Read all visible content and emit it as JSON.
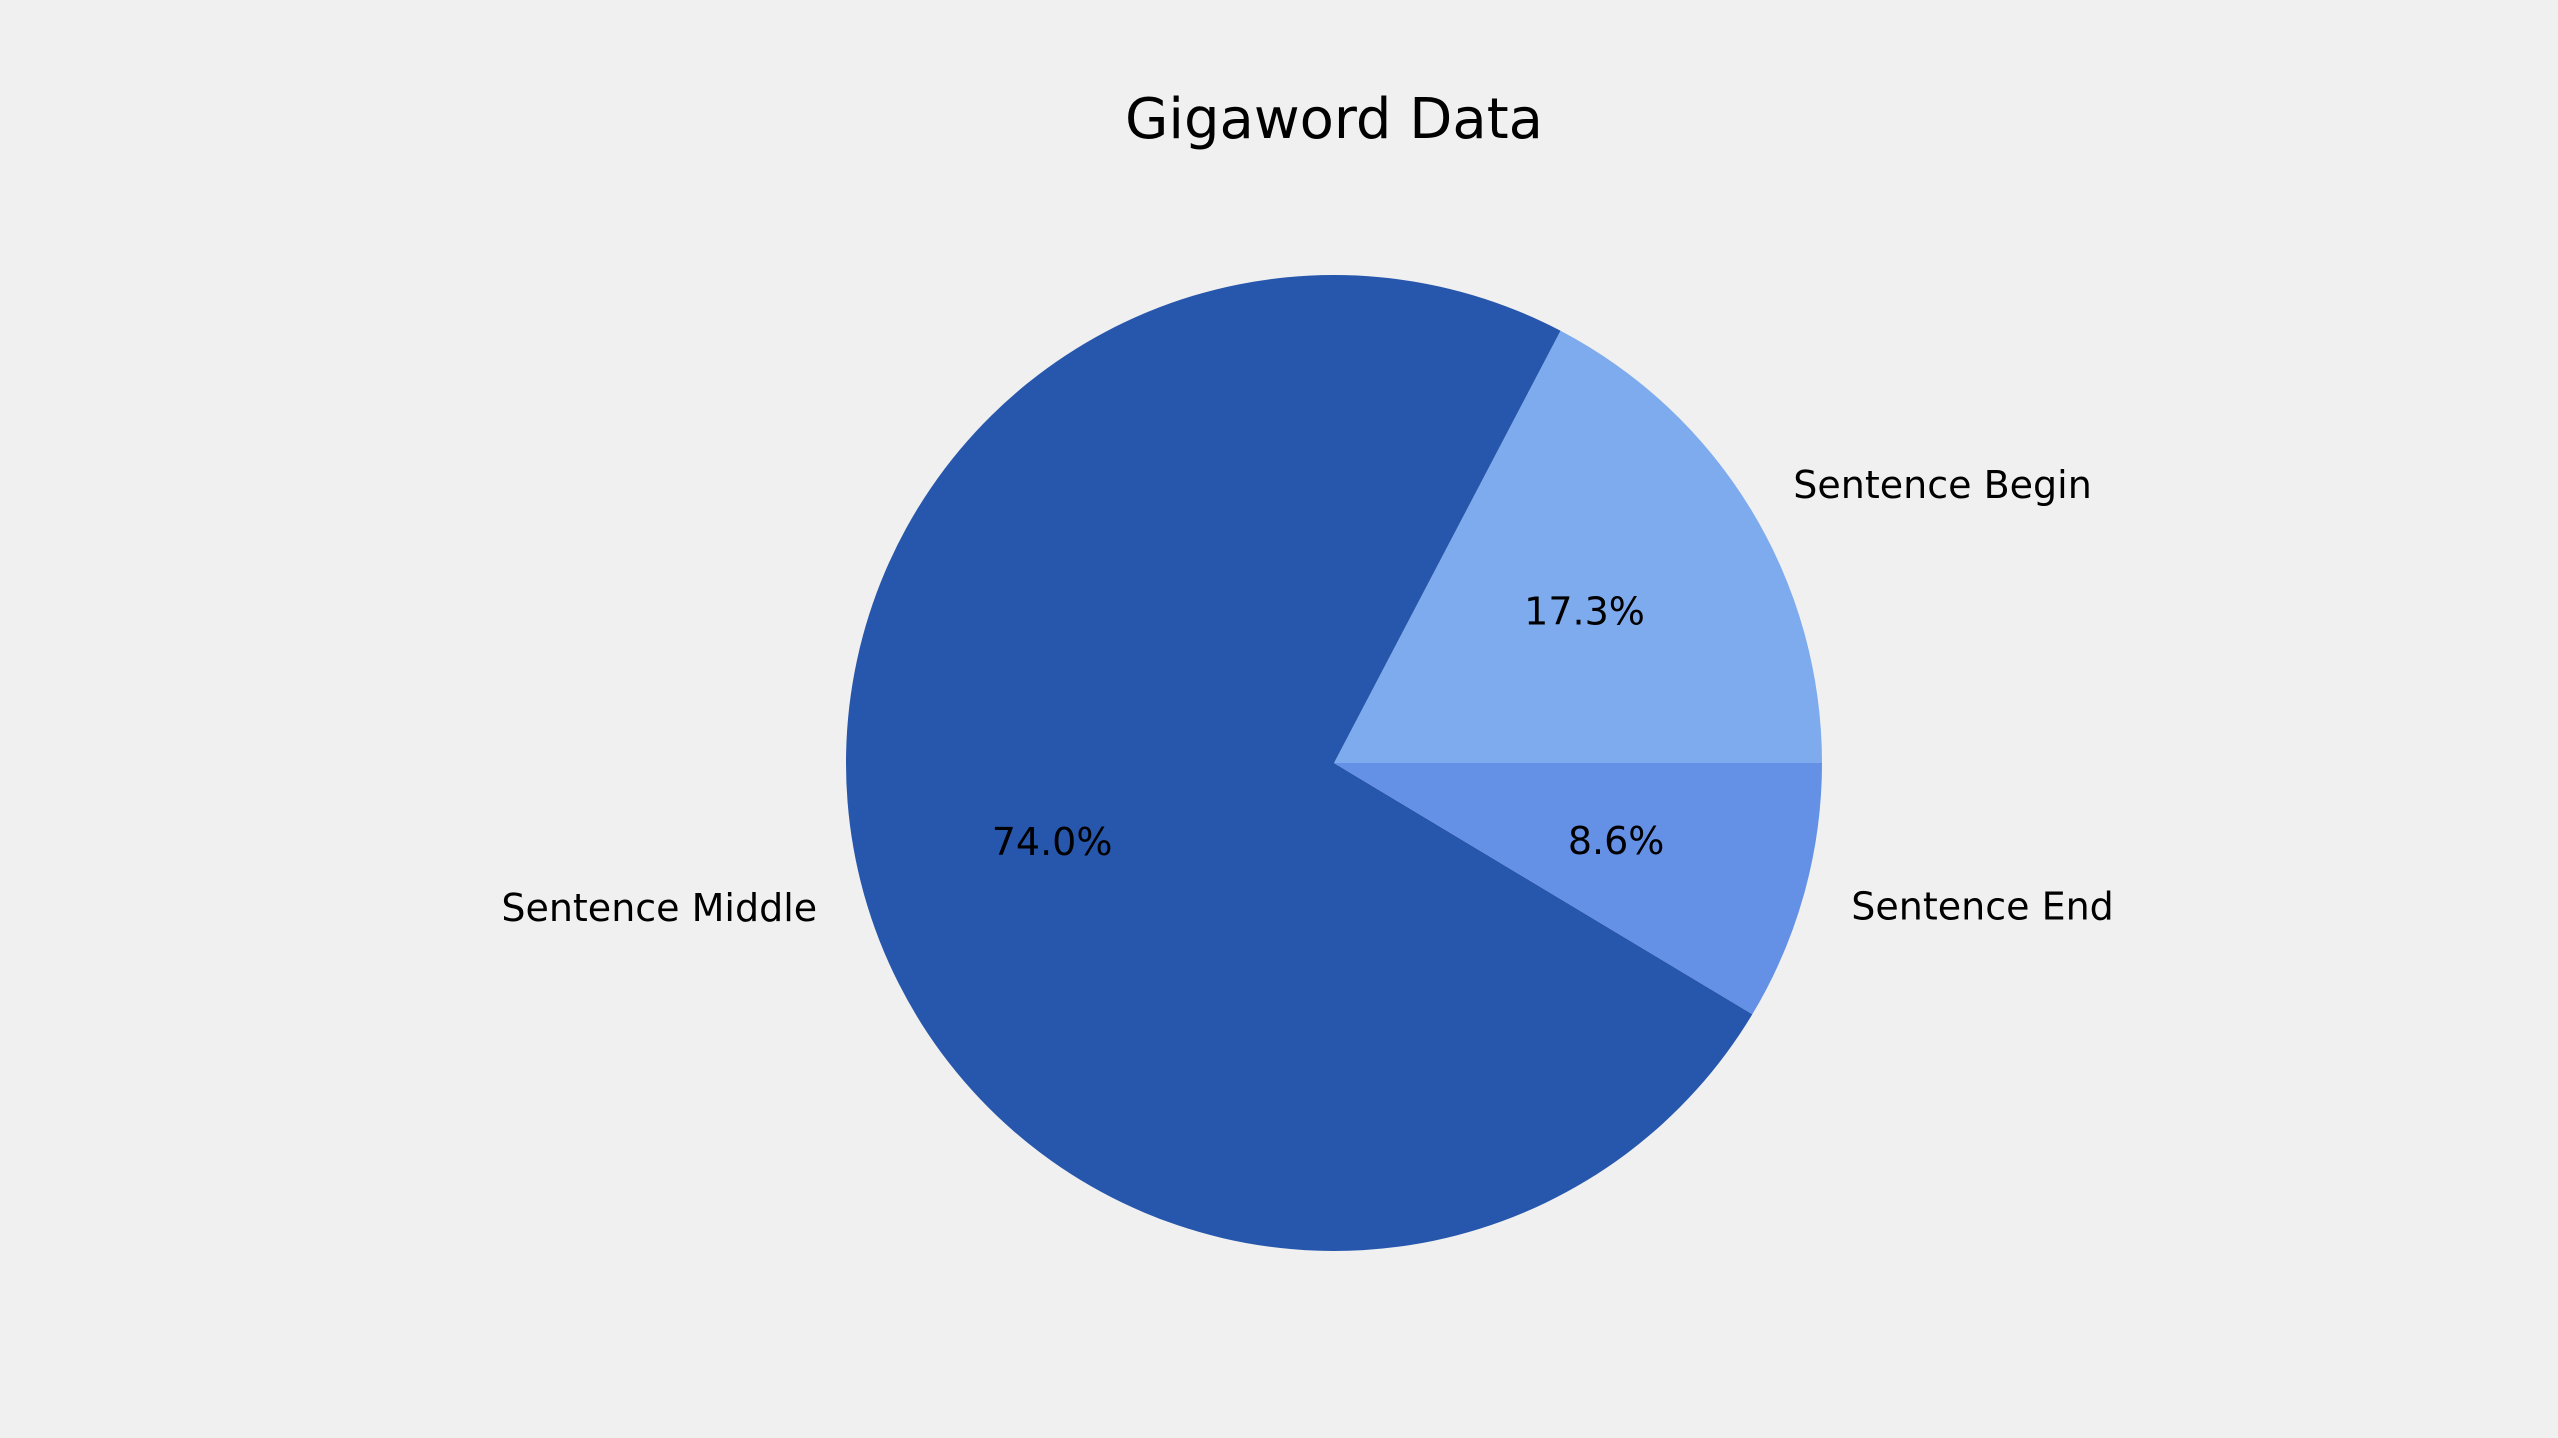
{
  "chart_data": {
    "type": "pie",
    "title": "Gigaword Data",
    "slices": [
      {
        "label": "Sentence Begin",
        "value": 17.3,
        "pct_label": "17.3%",
        "color": "#7eabed"
      },
      {
        "label": "Sentence Middle",
        "value": 74.0,
        "pct_label": "74.0%",
        "color": "#2757ad"
      },
      {
        "label": "Sentence End",
        "value": 8.6,
        "pct_label": "8.6%",
        "color": "#6490e6"
      }
    ],
    "start_angle_deg": 0,
    "direction": "counterclockwise",
    "background": "#f0f0f0"
  }
}
